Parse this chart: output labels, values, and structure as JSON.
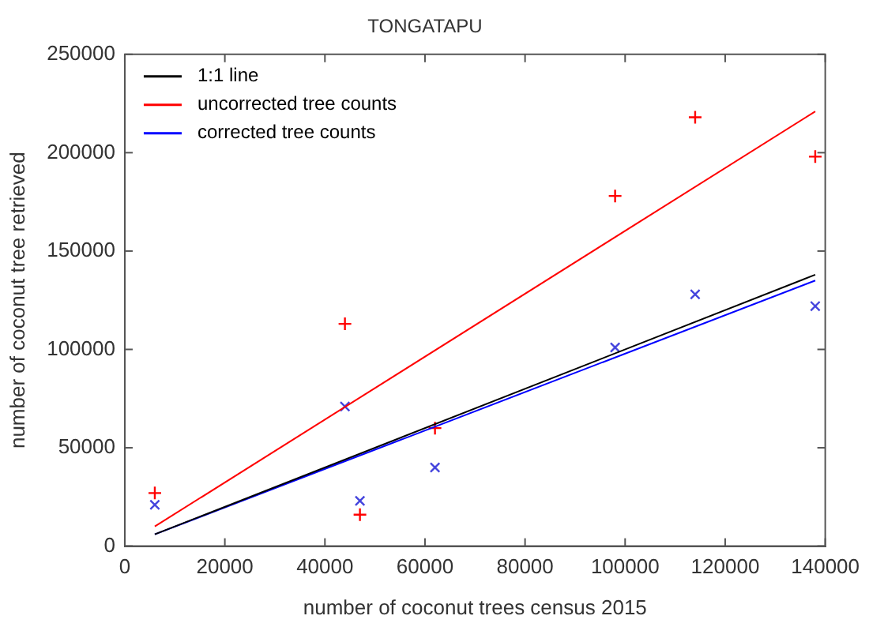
{
  "chart_data": {
    "type": "scatter",
    "title": "TONGATAPU",
    "xlabel": "number of coconut trees census 2015",
    "ylabel": "number of coconut tree retrieved",
    "xlim": [
      0,
      140000
    ],
    "xticks": [
      0,
      20000,
      40000,
      60000,
      80000,
      100000,
      120000,
      140000
    ],
    "ylim": [
      0,
      250000
    ],
    "yticks": [
      0,
      50000,
      100000,
      150000,
      200000,
      250000
    ],
    "grid": false,
    "legend": "top left",
    "series": [
      {
        "name": "1:1 line",
        "type": "line",
        "color": "#000000",
        "marker": "none",
        "x": [
          6000,
          138000
        ],
        "values": [
          6000,
          138000
        ]
      },
      {
        "name": "uncorrected tree counts",
        "type": "line",
        "color": "#ff0000",
        "marker": "none",
        "x": [
          6000,
          138000
        ],
        "values": [
          10000,
          221000
        ]
      },
      {
        "name": "corrected tree counts",
        "type": "line",
        "color": "#0000ff",
        "marker": "none",
        "x": [
          6000,
          138000
        ],
        "values": [
          6000,
          135000
        ]
      },
      {
        "color": "#ff0000",
        "marker": "cross",
        "x": [
          6000,
          44000,
          47000,
          62000,
          98000,
          114000,
          138000
        ],
        "values": [
          27000,
          113000,
          16000,
          60000,
          178000,
          218000,
          198000
        ]
      },
      {
        "color": "#4444dd",
        "marker": "x",
        "x": [
          6000,
          44000,
          47000,
          62000,
          98000,
          114000,
          138000
        ],
        "values": [
          21000,
          71000,
          23000,
          40000,
          101000,
          128000,
          122000
        ]
      }
    ]
  }
}
